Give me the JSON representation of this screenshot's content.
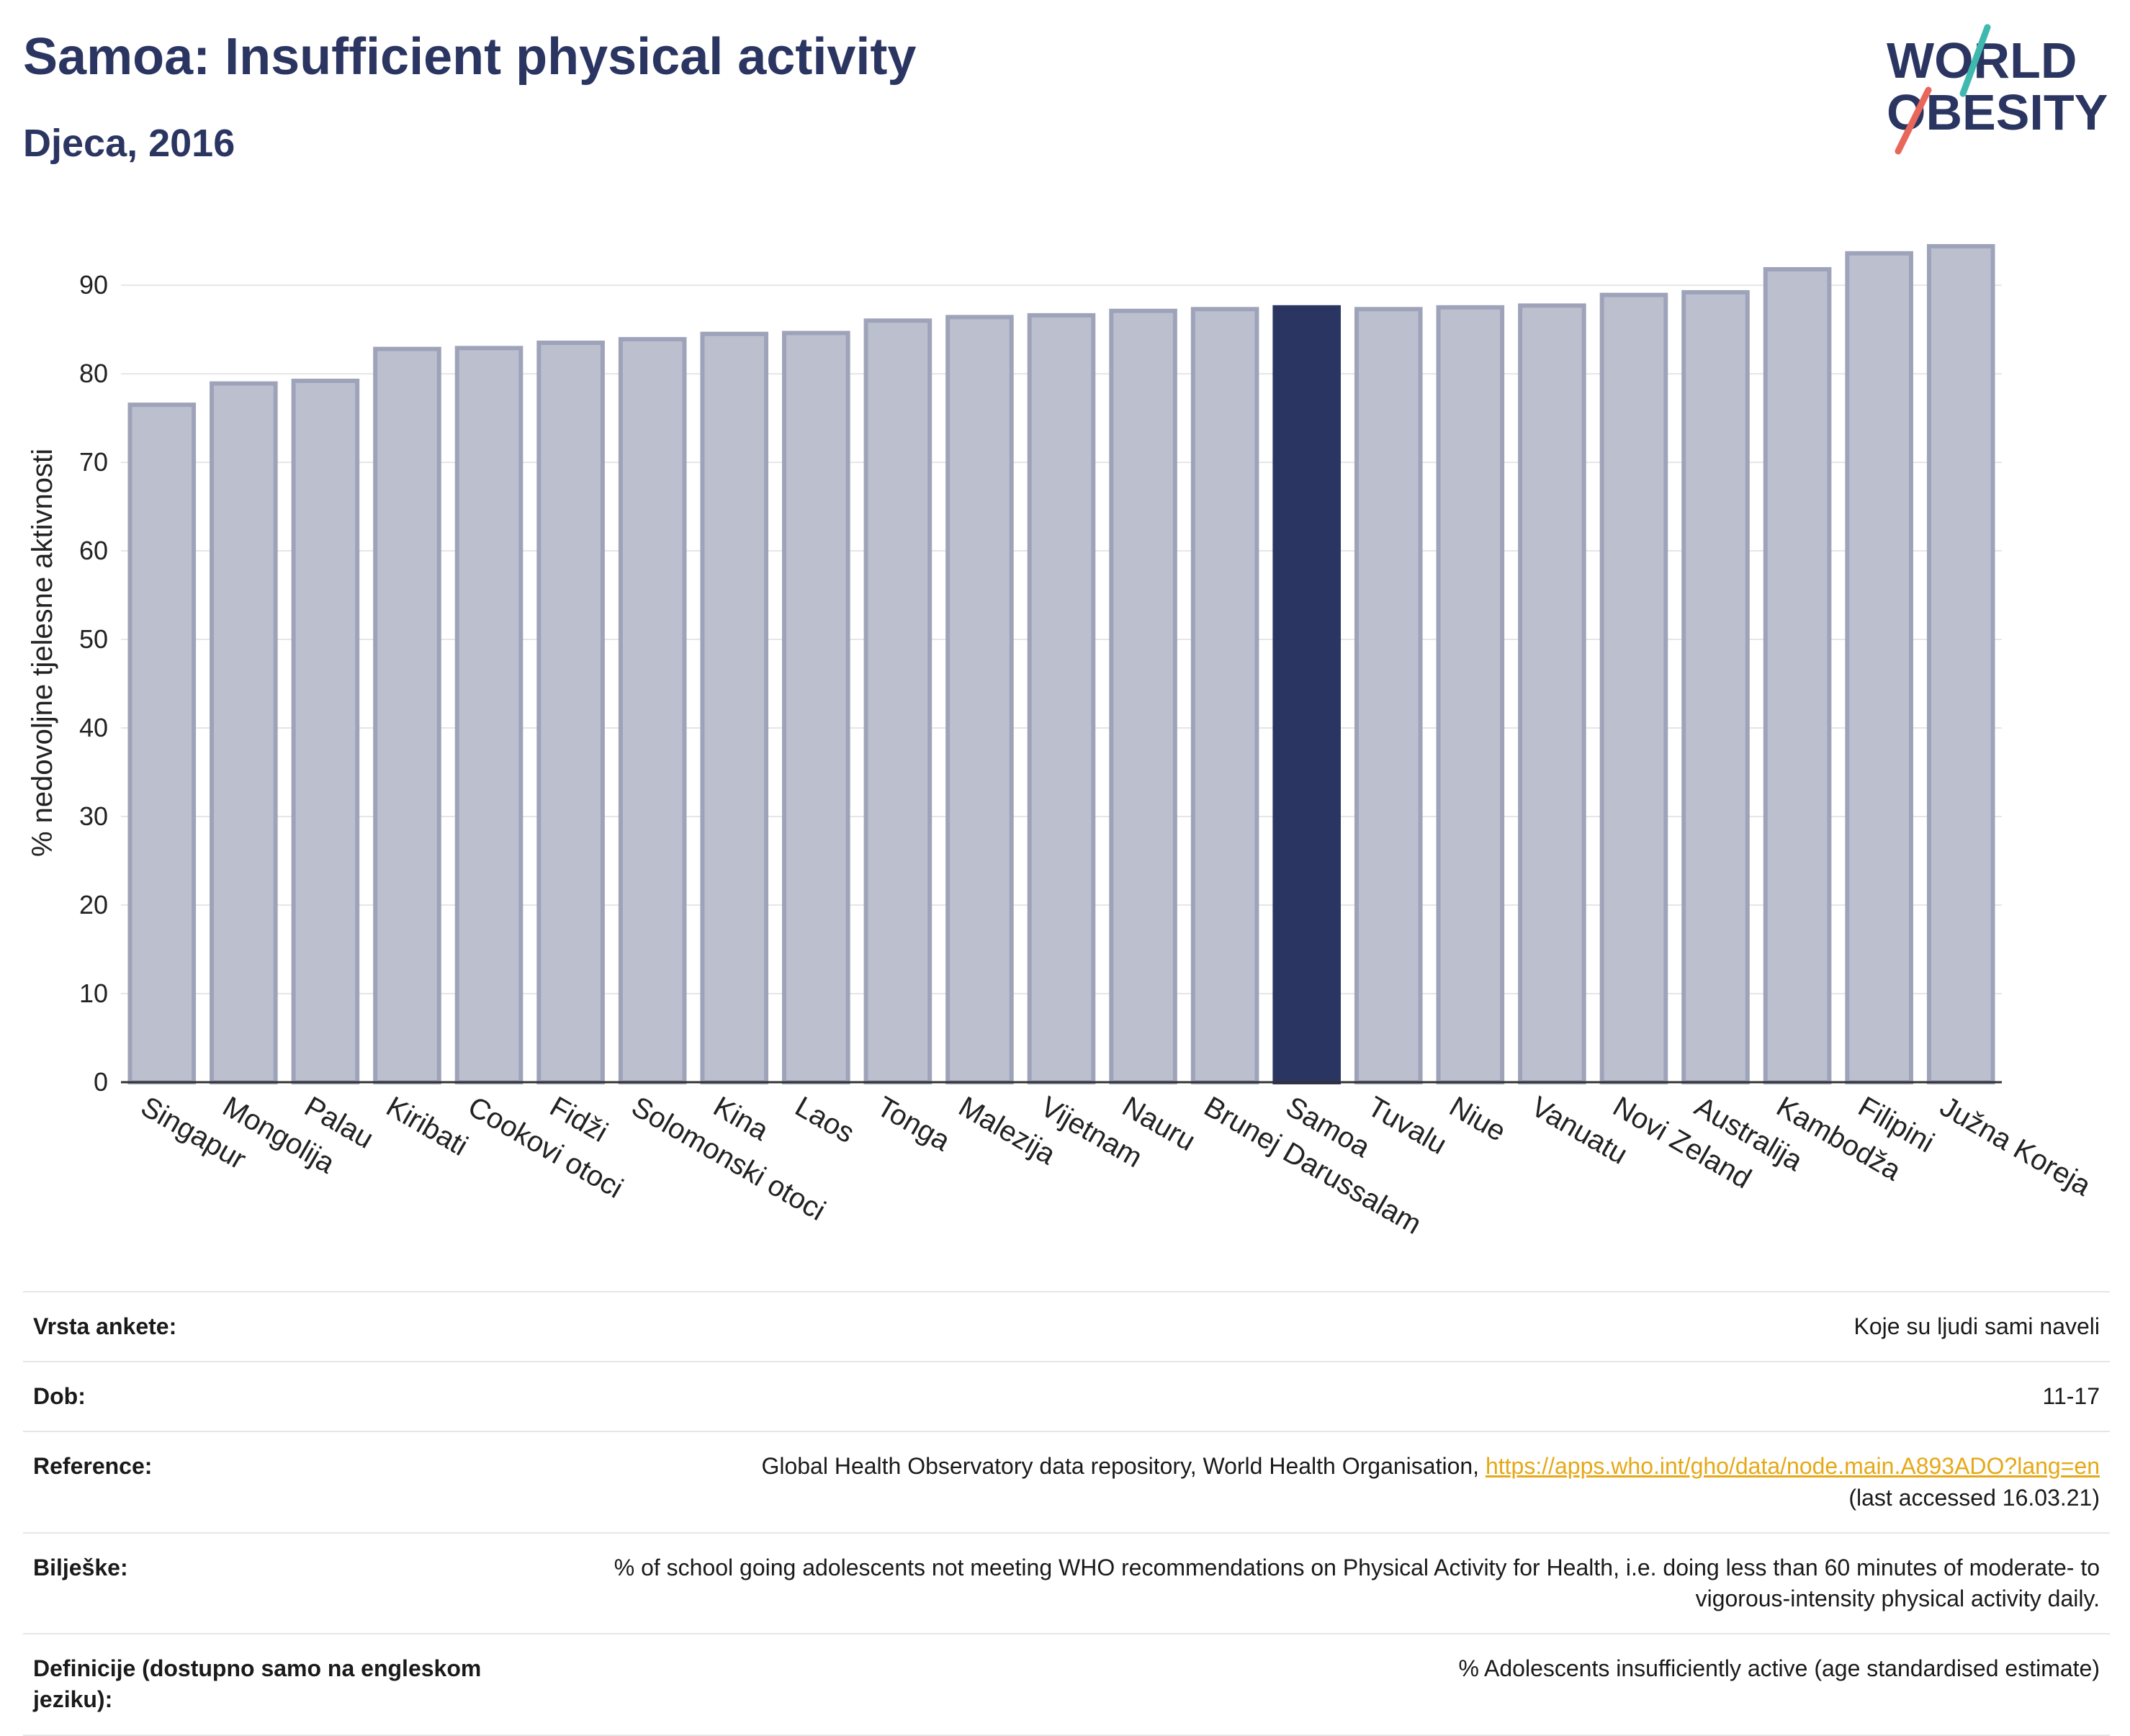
{
  "header": {
    "title": "Samoa: Insufficient physical activity",
    "subtitle": "Djeca, 2016"
  },
  "logo": {
    "line1": "WORLD",
    "line2": "OBESITY",
    "text_color": "#2b3561",
    "accent_teal": "#3fb8b0",
    "accent_coral": "#e8665a"
  },
  "chart_data": {
    "type": "bar",
    "title": "",
    "xlabel": "",
    "ylabel": "% nedovoljne tjelesne aktivnosti",
    "ylim": [
      0,
      97
    ],
    "yticks": [
      0,
      10,
      20,
      30,
      40,
      50,
      60,
      70,
      80,
      90
    ],
    "grid": true,
    "highlight": "Samoa",
    "colors": {
      "default": "#bcc0ce",
      "default_border": "#9ea3ba",
      "highlight": "#2b3561"
    },
    "categories": [
      "Singapur",
      "Mongolija",
      "Palau",
      "Kiribati",
      "Cookovi otoci",
      "Fidži",
      "Solomonski otoci",
      "Kina",
      "Laos",
      "Tonga",
      "Malezija",
      "Vijetnam",
      "Nauru",
      "Brunej Darussalam",
      "Samoa",
      "Tuvalu",
      "Niue",
      "Vanuatu",
      "Novi Zeland",
      "Australija",
      "Kambodža",
      "Filipini",
      "Južna Koreja"
    ],
    "values": [
      76.5,
      78.9,
      79.2,
      82.8,
      82.9,
      83.5,
      83.9,
      84.5,
      84.6,
      86.0,
      86.4,
      86.6,
      87.1,
      87.3,
      87.5,
      87.3,
      87.5,
      87.7,
      88.9,
      89.2,
      91.8,
      93.6,
      94.4
    ]
  },
  "meta": {
    "survey_label": "Vrsta ankete:",
    "survey_value": "Koje su ljudi sami naveli",
    "age_label": "Dob:",
    "age_value": "11-17",
    "ref_label": "Reference:",
    "ref_text": "Global Health Observatory data repository, World Health Organisation,",
    "ref_url": "https://apps.who.int/gho/data/node.main.A893ADO?lang=en",
    "ref_accessed": "(last accessed 16.03.21)",
    "notes_label": "Bilješke:",
    "notes_value": "% of school going adolescents not meeting WHO recommendations on Physical Activity for Health, i.e. doing less than 60 minutes of moderate- to vigorous-intensity physical activity daily.",
    "def_label": "Definicije (dostupno samo na engleskom jeziku):",
    "def_value": "% Adolescents insufficiently active (age standardised estimate)"
  }
}
